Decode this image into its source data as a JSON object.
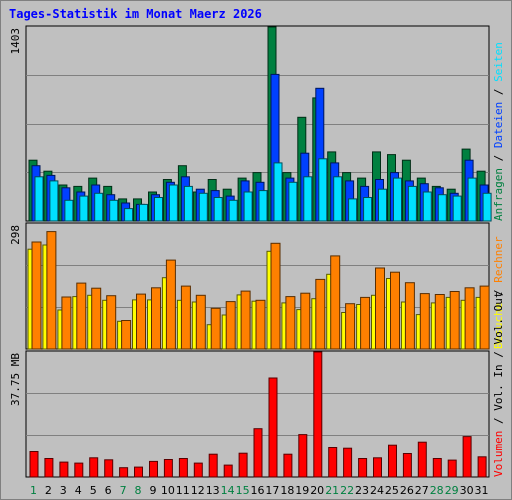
{
  "chart_data": {
    "type": "bar",
    "title": "Tages-Statistik im Monat Maerz 2026",
    "categories": [
      "1",
      "2",
      "3",
      "4",
      "5",
      "6",
      "7",
      "8",
      "9",
      "10",
      "11",
      "12",
      "13",
      "14",
      "15",
      "16",
      "17",
      "18",
      "19",
      "20",
      "21",
      "22",
      "23",
      "24",
      "25",
      "26",
      "27",
      "28",
      "29",
      "30",
      "31"
    ],
    "weekend_days": [
      "1",
      "7",
      "8",
      "14",
      "15",
      "21",
      "22",
      "28",
      "29"
    ],
    "panels": [
      {
        "id": "top",
        "ymax_label": "1403",
        "ylim": [
          0,
          1403
        ],
        "series_labels": [
          "Anfragen",
          "Dateien",
          "Seiten"
        ],
        "series": [
          {
            "name": "Anfragen",
            "color": "#008040",
            "values": [
              440,
              360,
              260,
              250,
              310,
              250,
              160,
              160,
              210,
              300,
              400,
              210,
              300,
              230,
              310,
              350,
              1403,
              350,
              750,
              890,
              500,
              350,
              310,
              500,
              480,
              440,
              310,
              250,
              230,
              520,
              360
            ]
          },
          {
            "name": "Dateien",
            "color": "#0040ff",
            "values": [
              400,
              330,
              240,
              210,
              260,
              190,
              130,
              120,
              190,
              280,
              320,
              230,
              220,
              180,
              290,
              280,
              1060,
              310,
              490,
              960,
              420,
              290,
              250,
              300,
              350,
              290,
              270,
              240,
              200,
              440,
              260
            ]
          },
          {
            "name": "Seiten",
            "color": "#00e0ff",
            "values": [
              320,
              290,
              150,
              180,
              200,
              150,
              90,
              120,
              170,
              260,
              250,
              200,
              170,
              150,
              210,
              220,
              420,
              280,
              320,
              450,
              320,
              160,
              170,
              230,
              310,
              250,
              210,
              190,
              180,
              310,
              200
            ]
          }
        ]
      },
      {
        "id": "middle",
        "ymax_label": "298",
        "ylim": [
          0,
          298
        ],
        "series_labels": [
          "Besuche",
          "Rechner"
        ],
        "series": [
          {
            "name": "Besuche",
            "color": "#ffff00",
            "values": [
              238,
              248,
              93,
              125,
              128,
              116,
              66,
              117,
              117,
              170,
              116,
              112,
              58,
              81,
              129,
              114,
              233,
              110,
              94,
              120,
              178,
              87,
              106,
              128,
              168,
              112,
              82,
              110,
              123,
              116,
              123
            ]
          },
          {
            "name": "Rechner",
            "color": "#ff8000",
            "values": [
              255,
              280,
              124,
              157,
              145,
              127,
              68,
              131,
              146,
              212,
              150,
              128,
              97,
              113,
              138,
              116,
              252,
              125,
              133,
              166,
              222,
              108,
              123,
              193,
              183,
              158,
              132,
              130,
              137,
              146,
              150
            ]
          }
        ]
      },
      {
        "id": "bottom",
        "ymax_label": "37.75 MB",
        "ylim": [
          0,
          37.75
        ],
        "series_labels": [
          "Volumen",
          "Vol. In",
          "Vol. Out"
        ],
        "series": [
          {
            "name": "Volumen",
            "color": "#ff0000",
            "values": [
              7.7,
              5.6,
              4.5,
              4.2,
              5.8,
              5.2,
              2.8,
              3.0,
              4.7,
              5.3,
              5.6,
              4.2,
              6.9,
              3.6,
              7.2,
              14.6,
              29.9,
              6.9,
              12.8,
              37.75,
              8.9,
              8.7,
              5.6,
              5.8,
              9.6,
              7.1,
              10.5,
              5.6,
              5.1,
              12.2,
              6.1
            ]
          }
        ]
      }
    ],
    "grid": true
  }
}
